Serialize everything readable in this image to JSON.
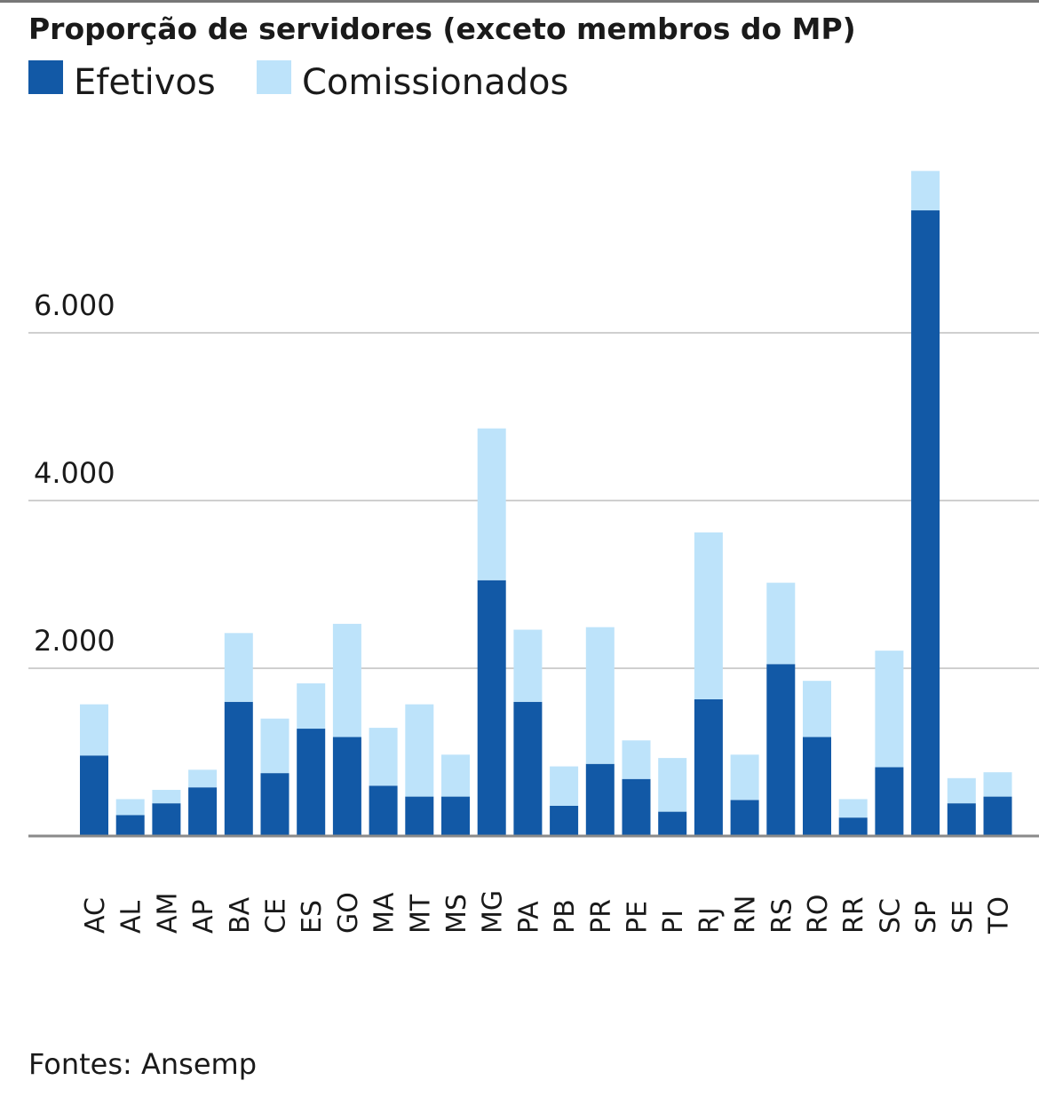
{
  "chart_data": {
    "type": "bar",
    "stacked": true,
    "title": "Proporção de servidores (exceto membros do MP)",
    "xlabel": "",
    "ylabel": "",
    "ylim": [
      0,
      8000
    ],
    "yticks": [
      2000,
      4000,
      6000
    ],
    "ytick_labels": [
      "2.000",
      "4.000",
      "6.000"
    ],
    "grid": true,
    "legend_placement": "top-left",
    "categories": [
      "AC",
      "AL",
      "AM",
      "AP",
      "BA",
      "CE",
      "ES",
      "GO",
      "MA",
      "MT",
      "MS",
      "MG",
      "PA",
      "PB",
      "PR",
      "PE",
      "PI",
      "RJ",
      "RN",
      "RS",
      "RO",
      "RR",
      "SC",
      "SP",
      "SE",
      "TO"
    ],
    "series": [
      {
        "name": "Efetivos",
        "color": "#1259a6",
        "values": [
          960,
          250,
          390,
          580,
          1600,
          750,
          1280,
          1180,
          600,
          470,
          470,
          3050,
          1600,
          360,
          860,
          680,
          290,
          1630,
          430,
          2050,
          1180,
          220,
          820,
          7460,
          390,
          470
        ]
      },
      {
        "name": "Comissionados",
        "color": "#bde3fa",
        "values": [
          610,
          190,
          160,
          210,
          820,
          650,
          540,
          1350,
          690,
          1100,
          500,
          1810,
          860,
          470,
          1630,
          460,
          640,
          1990,
          540,
          970,
          670,
          220,
          1390,
          470,
          300,
          290
        ]
      }
    ],
    "source": "Fontes: Ansemp"
  }
}
